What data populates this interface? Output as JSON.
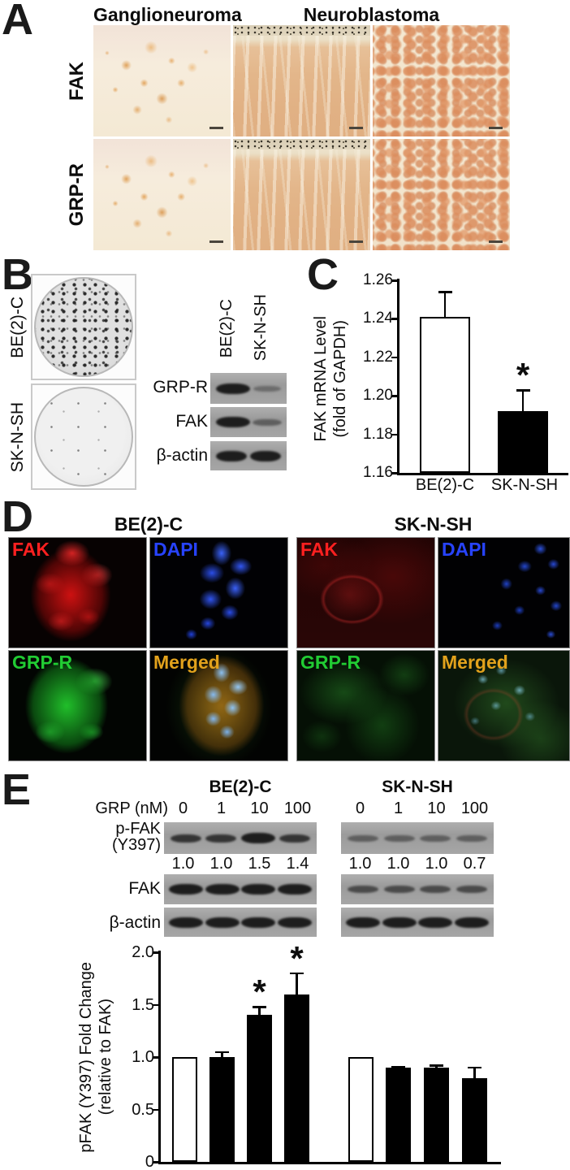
{
  "figure": {
    "panel_a": {
      "label": "A",
      "col_headers": [
        "Ganglioneuroma",
        "Neuroblastoma"
      ],
      "row_labels": [
        "FAK",
        "GRP-R"
      ]
    },
    "panel_b": {
      "label": "B",
      "dish_labels": [
        "BE(2)-C",
        "SK-N-SH"
      ],
      "blot_lane_labels": [
        "BE(2)-C",
        "SK-N-SH"
      ],
      "blot_row_labels": [
        "GRP-R",
        "FAK",
        "β-actin"
      ]
    },
    "panel_c": {
      "label": "C"
    },
    "panel_d": {
      "label": "D",
      "group_headers": [
        "BE(2)-C",
        "SK-N-SH"
      ],
      "stain_labels": [
        "FAK",
        "DAPI",
        "GRP-R",
        "Merged"
      ],
      "stain_colors": [
        "#ff2020",
        "#2743ff",
        "#21cc33",
        "#e2a21c"
      ]
    },
    "panel_e": {
      "label": "E",
      "group_headers": [
        "BE(2)-C",
        "SK-N-SH"
      ],
      "dose_label": "GRP (nM)",
      "doses": [
        "0",
        "1",
        "10",
        "100"
      ],
      "blot_rows": {
        "pfak_line1": "p-FAK",
        "pfak_line2": "(Y397)",
        "fak": "FAK",
        "actin": "β-actin"
      },
      "fold_values": {
        "be2c": [
          "1.0",
          "1.0",
          "1.5",
          "1.4"
        ],
        "sknsh": [
          "1.0",
          "1.0",
          "1.0",
          "0.7"
        ]
      }
    }
  },
  "chart_data": [
    {
      "id": "panel_c_fak_mrna",
      "type": "bar",
      "categories": [
        "BE(2)-C",
        "SK-N-SH"
      ],
      "values": [
        1.241,
        1.192
      ],
      "errors": [
        0.013,
        0.011
      ],
      "bar_fills": [
        "white",
        "black"
      ],
      "significance": [
        "",
        "*"
      ],
      "ylabel_line1": "FAK mRNA Level",
      "ylabel_line2": "(fold of GAPDH)",
      "ylim": [
        1.16,
        1.26
      ],
      "yticks": [
        {
          "label": "1.26",
          "value": 1.26
        },
        {
          "label": "1.24",
          "value": 1.24
        },
        {
          "label": "1.22",
          "value": 1.22
        },
        {
          "label": "1.20",
          "value": 1.2
        },
        {
          "label": "1.18",
          "value": 1.18
        },
        {
          "label": "1.16",
          "value": 1.16
        }
      ]
    },
    {
      "id": "panel_e_pfak_fold",
      "type": "bar",
      "groups": [
        "BE(2)-C",
        "SK-N-SH"
      ],
      "dose_categories": [
        "0",
        "1",
        "10",
        "100"
      ],
      "series": [
        {
          "name": "BE(2)-C",
          "values": [
            1.0,
            1.0,
            1.4,
            1.6
          ],
          "errors": [
            0,
            0.05,
            0.08,
            0.2
          ],
          "significance": [
            "",
            "",
            "*",
            "*"
          ],
          "bar_fills": [
            "white",
            "black",
            "black",
            "black"
          ]
        },
        {
          "name": "SK-N-SH",
          "values": [
            1.0,
            0.9,
            0.9,
            0.8
          ],
          "errors": [
            0,
            0.01,
            0.02,
            0.1
          ],
          "significance": [
            "",
            "",
            "",
            ""
          ],
          "bar_fills": [
            "white",
            "black",
            "black",
            "black"
          ]
        }
      ],
      "ylabel_line1": "pFAK (Y397) Fold Change",
      "ylabel_line2": "(relative to FAK)",
      "ylim": [
        0,
        2.0
      ],
      "yticks": [
        {
          "label": "2.0",
          "value": 2.0
        },
        {
          "label": "1.5",
          "value": 1.5
        },
        {
          "label": "1.0",
          "value": 1.0
        },
        {
          "label": "0.5",
          "value": 0.5
        },
        {
          "label": "0",
          "value": 0
        }
      ]
    }
  ]
}
